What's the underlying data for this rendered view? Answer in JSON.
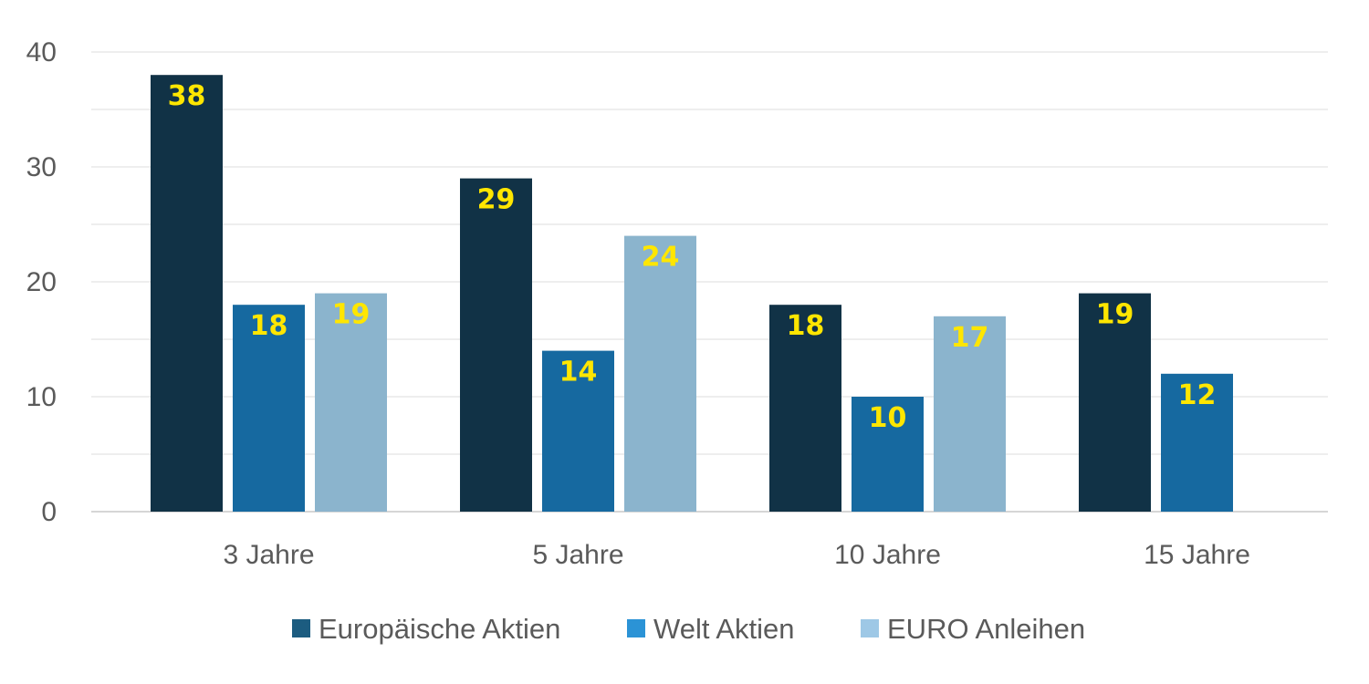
{
  "chart_data": {
    "type": "bar",
    "title": "",
    "xlabel": "",
    "ylabel": "",
    "categories": [
      "3 Jahre",
      "5 Jahre",
      "10 Jahre",
      "15 Jahre"
    ],
    "series": [
      {
        "name": "Europäische Aktien",
        "values": [
          38,
          29,
          18,
          19
        ],
        "color": "#113246",
        "legend_color": "#1c5c80"
      },
      {
        "name": "Welt Aktien",
        "values": [
          18,
          14,
          10,
          12
        ],
        "color": "#1669a0",
        "legend_color": "#2b93d6"
      },
      {
        "name": "EURO Anleihen",
        "values": [
          19,
          24,
          17,
          null
        ],
        "color": "#8bb4cd",
        "legend_color": "#9ec8e6"
      }
    ],
    "ylim": [
      0,
      40
    ],
    "yticks": [
      0,
      10,
      20,
      30,
      40
    ],
    "minor_gridlines_every": 5,
    "grid": true,
    "data_label_color": "#ffe600",
    "legend_position": "bottom"
  }
}
